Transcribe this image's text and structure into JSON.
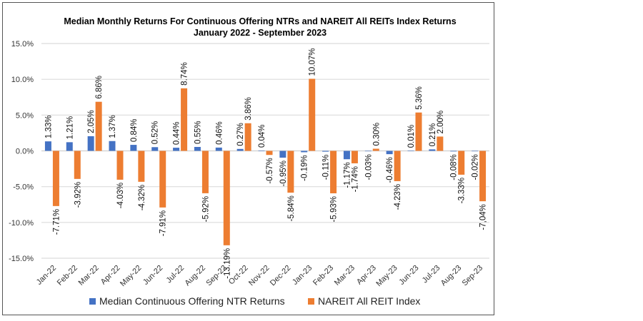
{
  "chart_data": {
    "type": "bar",
    "title": "Median Monthly Returns For Continuous Offering NTRs and NAREIT All REITs Index Returns",
    "subtitle": "January 2022 - September 2023",
    "xlabel": "",
    "ylabel": "",
    "ylim": [
      -15,
      15
    ],
    "yticks": [
      15,
      10,
      5,
      0,
      -5,
      -10,
      -15
    ],
    "ytick_labels": [
      "15.0%",
      "10.0%",
      "5.0%",
      "0.0%",
      "-5.0%",
      "-10.0%",
      "-15.0%"
    ],
    "grid": true,
    "legend_position": "bottom",
    "categories": [
      "Jan-22",
      "Feb-22",
      "Mar-22",
      "Apr-22",
      "May-22",
      "Jun-22",
      "Jul-22",
      "Aug-22",
      "Sep-22",
      "Oct-22",
      "Nov-22",
      "Dec-22",
      "Jan-23",
      "Feb-23",
      "Mar-23",
      "Apr-23",
      "May-23",
      "Jun-23",
      "Jul-23",
      "Aug-23",
      "Sep-23"
    ],
    "series": [
      {
        "name": "Median Continuous Offering NTR Returns",
        "color": "#4472C4",
        "values": [
          1.33,
          1.21,
          2.05,
          1.37,
          0.84,
          0.52,
          0.44,
          0.55,
          0.46,
          0.27,
          0.04,
          -0.95,
          -0.19,
          -0.11,
          -1.17,
          -0.03,
          -0.46,
          0.01,
          0.21,
          -0.08,
          -0.02
        ],
        "labels": [
          "1.33%",
          "1.21%",
          "2.05%",
          "1.37%",
          "0.84%",
          "0.52%",
          "0.44%",
          "0.55%",
          "0.46%",
          "0.27%",
          "0.04%",
          "-0.95%",
          "-0.19%",
          "-0.11%",
          "-1.17%",
          "-0.03%",
          "-0.46%",
          "0.01%",
          "0.21%",
          "-0.08%",
          "-0.02%"
        ]
      },
      {
        "name": "NAREIT All REIT Index",
        "color": "#ED7D31",
        "values": [
          -7.71,
          -3.92,
          6.86,
          -4.03,
          -4.32,
          -7.91,
          8.74,
          -5.92,
          -13.19,
          3.86,
          -0.57,
          -5.84,
          10.07,
          -5.93,
          -1.74,
          0.3,
          -4.23,
          5.36,
          2.0,
          -3.33,
          -7.04
        ],
        "labels": [
          "-7.71%",
          "-3.92%",
          "6.86%",
          "-4.03%",
          "-4.32%",
          "-7.91%",
          "8.74%",
          "-5.92%",
          "-13.19%",
          "3.86%",
          "-0.57%",
          "-5.84%",
          "10.07%",
          "-5.93%",
          "-1.74%",
          "0.30%",
          "-4.23%",
          "5.36%",
          "2.00%",
          "-3.33%",
          "-7,04%"
        ]
      }
    ]
  }
}
